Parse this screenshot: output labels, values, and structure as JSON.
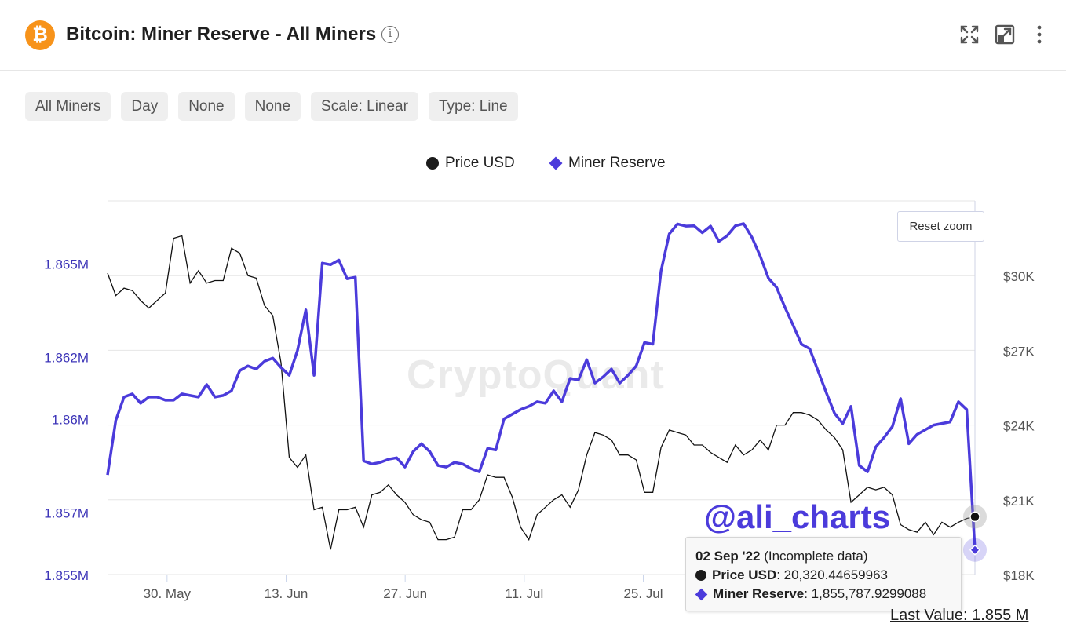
{
  "header": {
    "title": "Bitcoin: Miner Reserve - All Miners",
    "logo_glyph": "₿",
    "info_glyph": "i",
    "icons": [
      "expand-icon",
      "popout-icon",
      "more-vertical-icon"
    ]
  },
  "filters": [
    "All Miners",
    "Day",
    "None",
    "None",
    "Scale: Linear",
    "Type: Line"
  ],
  "reset_zoom_label": "Reset zoom",
  "watermark": "CryptoQuant",
  "handle": "@ali_charts",
  "tooltip": {
    "date": "02 Sep '22",
    "note": " (Incomplete data)",
    "price_label": "Price USD",
    "price_value": ": 20,320.44659963",
    "reserve_label": "Miner Reserve",
    "reserve_value": ": 1,855,787.9299088"
  },
  "last_value": "Last Value: 1.855 M",
  "colors": {
    "reserve": "#4b3bdb",
    "price": "#111111",
    "grid": "#e6e6e6",
    "left_axis_text": "#3d35b8",
    "btc": "#f7931a"
  },
  "chart_data": {
    "type": "line",
    "legend": {
      "position": "top-center",
      "entries": [
        "Price USD",
        "Miner Reserve"
      ]
    },
    "x_start": "2022-05-23",
    "x_end": "2022-09-02",
    "x_ticks": [
      {
        "date": "2022-05-30",
        "label": "30. May"
      },
      {
        "date": "2022-06-13",
        "label": "13. Jun"
      },
      {
        "date": "2022-06-27",
        "label": "27. Jun"
      },
      {
        "date": "2022-07-11",
        "label": "11. Jul"
      },
      {
        "date": "2022-07-25",
        "label": "25. Jul"
      }
    ],
    "y_left": {
      "range": [
        1855000,
        1867000
      ],
      "ticks": [
        {
          "v": 1855000,
          "label": "1.855M"
        },
        {
          "v": 1857000,
          "label": "1.857M"
        },
        {
          "v": 1860000,
          "label": "1.86M"
        },
        {
          "v": 1862000,
          "label": "1.862M"
        },
        {
          "v": 1865000,
          "label": "1.865M"
        }
      ]
    },
    "y_right": {
      "range": [
        18000,
        33000
      ],
      "ticks": [
        {
          "v": 18000,
          "label": "$18K"
        },
        {
          "v": 21000,
          "label": "$21K"
        },
        {
          "v": 24000,
          "label": "$24K"
        },
        {
          "v": 27000,
          "label": "$27K"
        },
        {
          "v": 30000,
          "label": "$30K"
        }
      ]
    },
    "grid": true,
    "series": [
      {
        "name": "Miner Reserve",
        "axis": "left",
        "values": [
          1858200,
          1859950,
          1860700,
          1860800,
          1860500,
          1860700,
          1860700,
          1860600,
          1860600,
          1860800,
          1860750,
          1860700,
          1861100,
          1860700,
          1860750,
          1860900,
          1861550,
          1861700,
          1861600,
          1861850,
          1861950,
          1861650,
          1861400,
          1862200,
          1863500,
          1861400,
          1865000,
          1864950,
          1865100,
          1864500,
          1864550,
          1858650,
          1858550,
          1858600,
          1858700,
          1858750,
          1858450,
          1858950,
          1859200,
          1858950,
          1858500,
          1858450,
          1858600,
          1858550,
          1858400,
          1858300,
          1859050,
          1859000,
          1860000,
          1860150,
          1860300,
          1860400,
          1860550,
          1860500,
          1860900,
          1860550,
          1861300,
          1861250,
          1861900,
          1861150,
          1861350,
          1861600,
          1861150,
          1861400,
          1861700,
          1862450,
          1862400,
          1864750,
          1865940,
          1866260,
          1866190,
          1866200,
          1865980,
          1866190,
          1865700,
          1865880,
          1866200,
          1866270,
          1865830,
          1865230,
          1864520,
          1864220,
          1863580,
          1863000,
          1862400,
          1862250,
          1861550,
          1860840,
          1860180,
          1859850,
          1860400,
          1858500,
          1858300,
          1859100,
          1859400,
          1859750,
          1860650,
          1859200,
          1859500,
          1859650,
          1859800,
          1859850,
          1859900,
          1860550,
          1860300,
          1855787.93
        ]
      },
      {
        "name": "Price USD",
        "axis": "right",
        "values": [
          30100,
          29200,
          29500,
          29400,
          29000,
          28700,
          29000,
          29300,
          31500,
          31600,
          29700,
          30200,
          29700,
          29800,
          29800,
          31100,
          30900,
          30000,
          29900,
          28800,
          28400,
          26500,
          22700,
          22300,
          22800,
          20600,
          20700,
          19000,
          20600,
          20600,
          20700,
          19900,
          21200,
          21300,
          21600,
          21200,
          20900,
          20400,
          20200,
          20100,
          19400,
          19400,
          19500,
          20600,
          20600,
          21000,
          22000,
          21900,
          21900,
          21100,
          19900,
          19400,
          20400,
          20700,
          21000,
          21200,
          20700,
          21400,
          22800,
          23700,
          23600,
          23400,
          22800,
          22800,
          22600,
          21300,
          21300,
          23100,
          23800,
          23700,
          23600,
          23200,
          23200,
          22900,
          22700,
          22500,
          23200,
          22800,
          23000,
          23400,
          23000,
          24000,
          24000,
          24500,
          24500,
          24400,
          24200,
          23800,
          23500,
          23000,
          20900,
          21200,
          21500,
          21400,
          21500,
          21200,
          20000,
          19800,
          19700,
          20100,
          19600,
          20100,
          19900,
          20100,
          20250,
          20320.45
        ]
      }
    ]
  }
}
